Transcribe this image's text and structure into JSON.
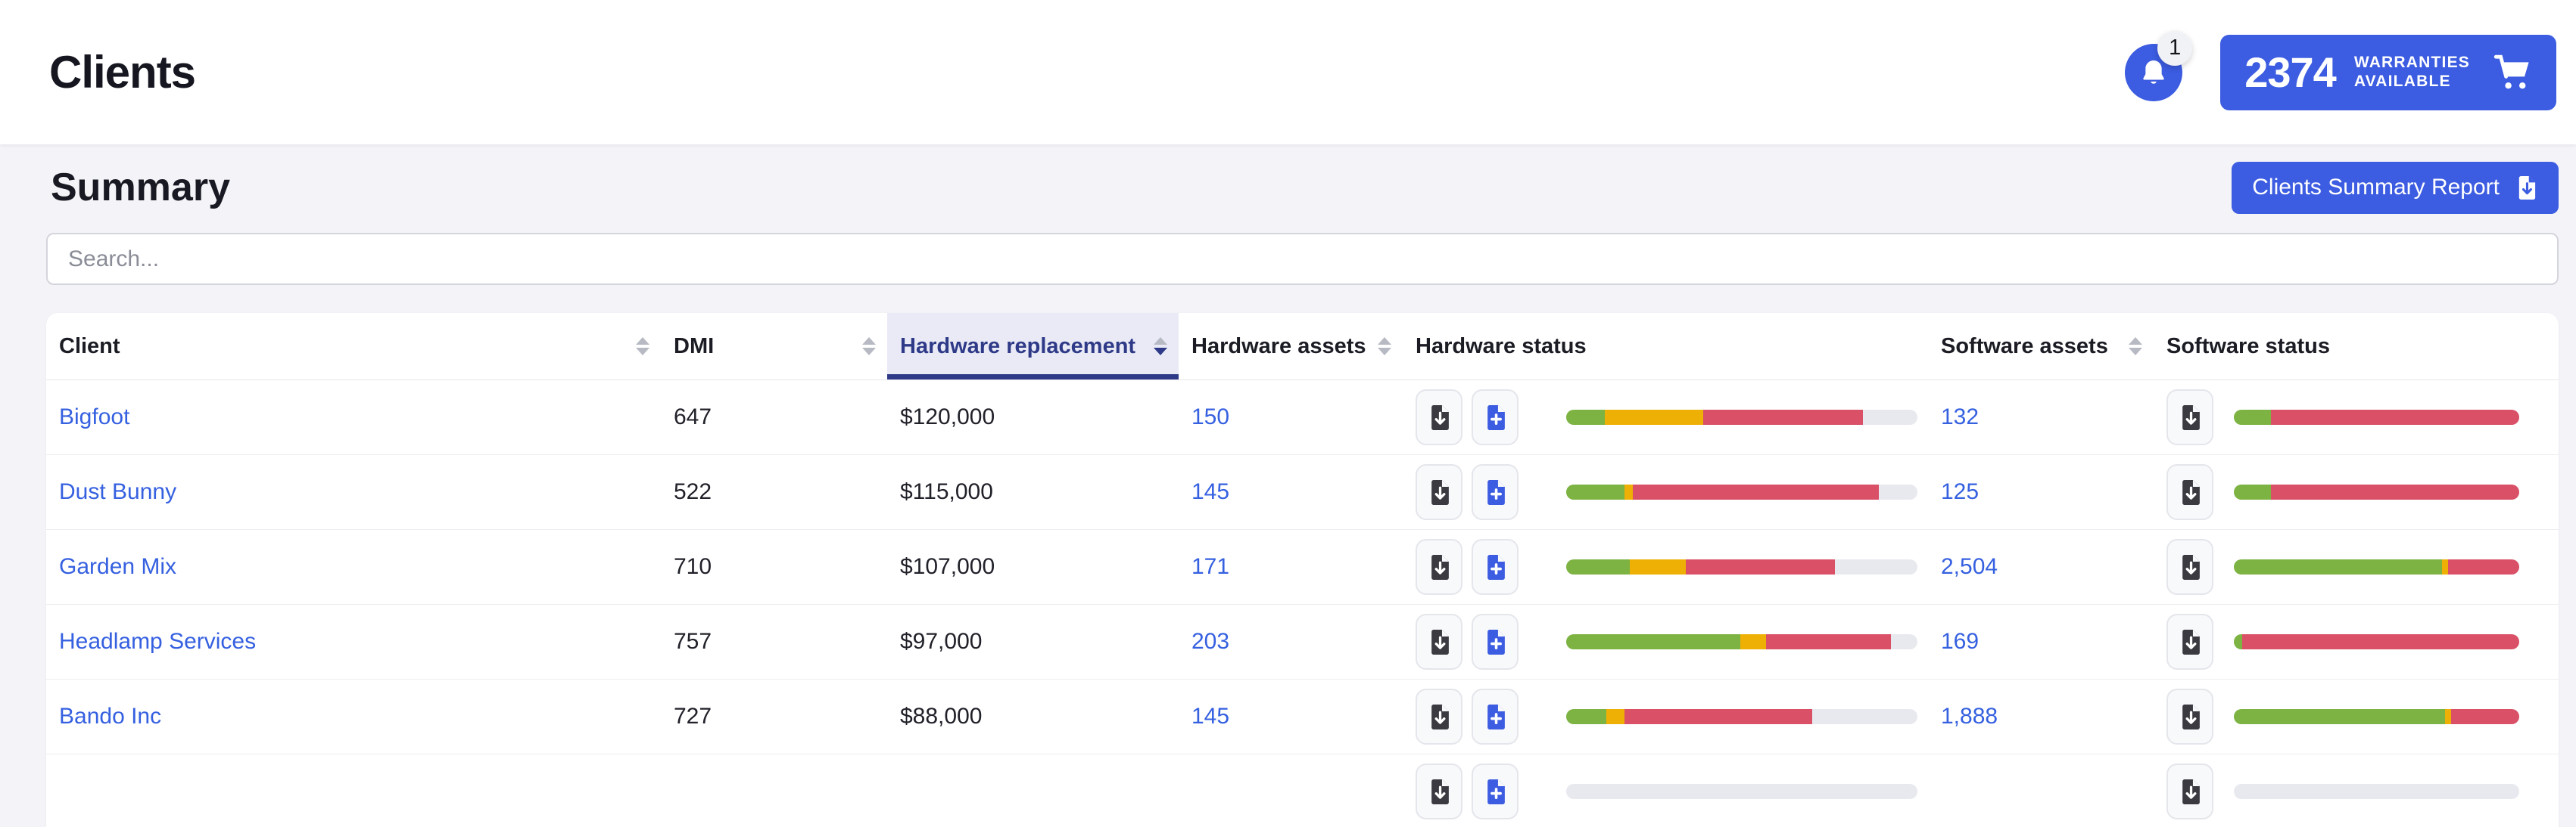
{
  "header": {
    "title": "Clients",
    "notifications": {
      "count": "1"
    },
    "warranty_button": {
      "count": "2374",
      "label_line1": "WARRANTIES",
      "label_line2": "AVAILABLE"
    }
  },
  "summary": {
    "title": "Summary",
    "report_button_label": "Clients Summary Report",
    "search_placeholder": "Search..."
  },
  "table": {
    "columns": [
      {
        "label": "Client",
        "sortable": true
      },
      {
        "label": "DMI",
        "sortable": true
      },
      {
        "label": "Hardware replacement",
        "sortable": true,
        "sort_direction": "desc"
      },
      {
        "label": "Hardware assets",
        "sortable": true
      },
      {
        "label": "Hardware status",
        "sortable": false
      },
      {
        "label": "Software assets",
        "sortable": true
      },
      {
        "label": "Software status",
        "sortable": false
      }
    ],
    "rows": [
      {
        "client": "Bigfoot",
        "dmi": "647",
        "hardware_replacement": "$120,000",
        "hardware_assets": "150",
        "hardware_status": {
          "green": 11,
          "yellow": 28,
          "red": 45.5
        },
        "software_assets": "132",
        "software_status": {
          "green": 13,
          "yellow": 0,
          "red": 87
        }
      },
      {
        "client": "Dust Bunny",
        "dmi": "522",
        "hardware_replacement": "$115,000",
        "hardware_assets": "145",
        "hardware_status": {
          "green": 16.5,
          "yellow": 2.5,
          "red": 70
        },
        "software_assets": "125",
        "software_status": {
          "green": 13,
          "yellow": 0,
          "red": 87
        }
      },
      {
        "client": "Garden Mix",
        "dmi": "710",
        "hardware_replacement": "$107,000",
        "hardware_assets": "171",
        "hardware_status": {
          "green": 18,
          "yellow": 16,
          "red": 42.5
        },
        "software_assets": "2,504",
        "software_status": {
          "green": 73,
          "yellow": 2,
          "red": 25
        }
      },
      {
        "client": "Headlamp Services",
        "dmi": "757",
        "hardware_replacement": "$97,000",
        "hardware_assets": "203",
        "hardware_status": {
          "green": 49.5,
          "yellow": 7.5,
          "red": 35.5
        },
        "software_assets": "169",
        "software_status": {
          "green": 3,
          "yellow": 0,
          "red": 97
        }
      },
      {
        "client": "Bando Inc",
        "dmi": "727",
        "hardware_replacement": "$88,000",
        "hardware_assets": "145",
        "hardware_status": {
          "green": 11.5,
          "yellow": 5,
          "red": 53.5
        },
        "software_assets": "1,888",
        "software_status": {
          "green": 74,
          "yellow": 2,
          "red": 24
        }
      }
    ],
    "partial_row_visible": true
  },
  "icons": {
    "notifications": "bell-icon",
    "notification_badge": "count-badge",
    "warranty_cart": "cart-icon",
    "report_download": "file-download-icon",
    "row_download": "file-download-icon",
    "row_add": "file-plus-icon",
    "column_sort": "sort-arrows-icon"
  },
  "colors": {
    "accent_blue": "#3c5ce1",
    "link_blue": "#3560e0",
    "bar_green": "#7cb342",
    "bar_yellow": "#eeb005",
    "bar_red": "#d95067",
    "bar_track": "#e8e9ee",
    "sorted_navy": "#2e3a87",
    "sorted_bg": "#e9eaf6"
  }
}
